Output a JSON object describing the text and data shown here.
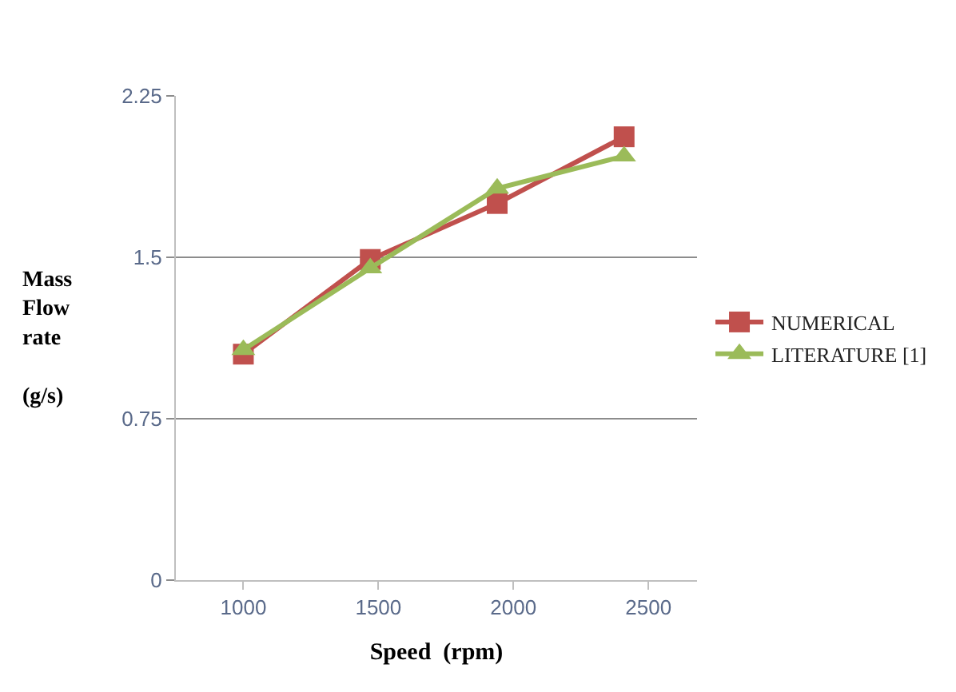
{
  "chart_data": {
    "type": "line",
    "xlabel": "Speed  (rpm)",
    "ylabel": "Mass Flow rate (g/s)",
    "x": [
      1000,
      1470,
      1940,
      2410
    ],
    "xlim": [
      750,
      2680
    ],
    "xticks": [
      1000,
      1500,
      2000,
      2500
    ],
    "ylim": [
      0,
      2.25
    ],
    "yticks": [
      0,
      0.75,
      1.5,
      2.25
    ],
    "grid": "y",
    "legend": "right",
    "line_style": "solid",
    "series": [
      {
        "name": "NUMERICAL",
        "color": "#c0504d",
        "marker": "square",
        "values": [
          1.05,
          1.49,
          1.75,
          2.06
        ]
      },
      {
        "name": "LITERATURE [1]",
        "color": "#9bbb59",
        "marker": "triangle",
        "values": [
          1.07,
          1.45,
          1.82,
          1.97
        ]
      }
    ]
  }
}
